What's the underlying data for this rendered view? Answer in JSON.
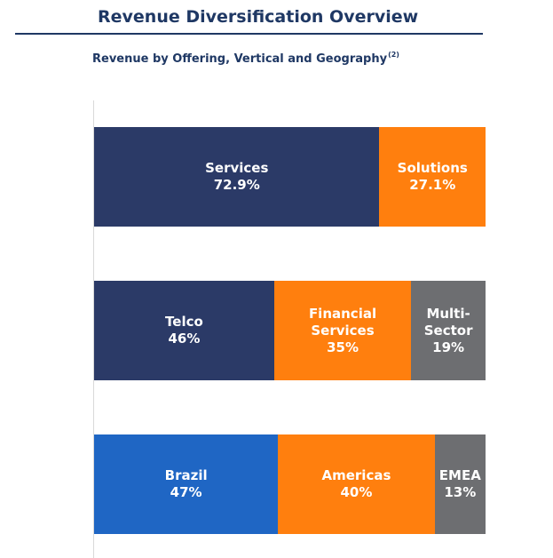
{
  "header": {
    "title": "Revenue Diversification Overview",
    "subtitle": "Revenue by Offering, Vertical and Geography",
    "footnote_ref": "(2)"
  },
  "chart_data": {
    "type": "bar",
    "orientation": "horizontal-stacked-100",
    "title": "Revenue by Offering, Vertical and Geography",
    "grid": false,
    "rows": [
      {
        "segments": [
          {
            "label": "Services",
            "value_label": "72.9%",
            "value": 72.9,
            "color": "#2b3a67"
          },
          {
            "label": "Solutions",
            "value_label": "27.1%",
            "value": 27.1,
            "color": "#ff7f0e"
          }
        ]
      },
      {
        "segments": [
          {
            "label": "Telco",
            "value_label": "46%",
            "value": 46,
            "color": "#2b3a67"
          },
          {
            "label": "Financial\nServices",
            "value_label": "35%",
            "value": 35,
            "color": "#ff7f0e"
          },
          {
            "label": "Multi-\nSector",
            "value_label": "19%",
            "value": 19,
            "color": "#6d6e71"
          }
        ]
      },
      {
        "segments": [
          {
            "label": "Brazil",
            "value_label": "47%",
            "value": 47,
            "color": "#1f66c4"
          },
          {
            "label": "Americas",
            "value_label": "40%",
            "value": 40,
            "color": "#ff7f0e"
          },
          {
            "label": "EMEA",
            "value_label": "13%",
            "value": 13,
            "color": "#6d6e71"
          }
        ]
      }
    ]
  }
}
